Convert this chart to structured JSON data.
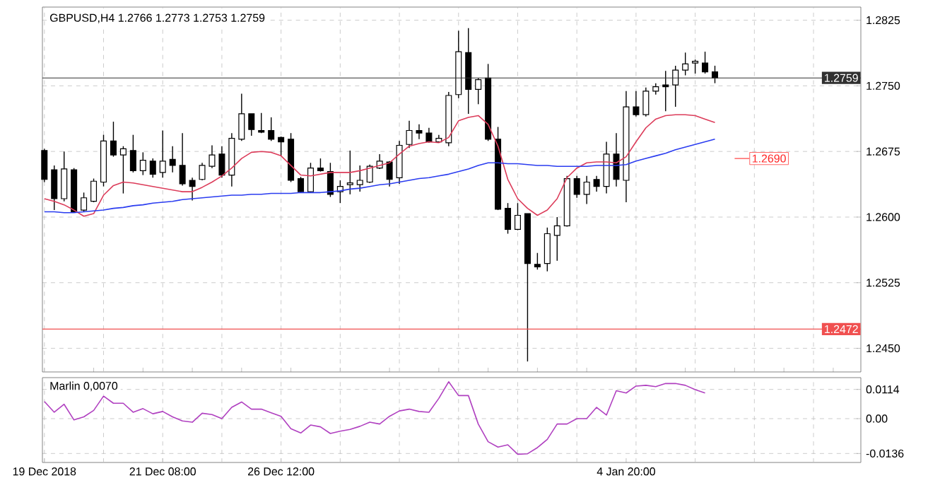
{
  "chart_data": [
    {
      "type": "candlestick",
      "title": "GBPUSD,H4  1.2766 1.2773 1.2753 1.2759",
      "categories": [
        null,
        null,
        null,
        null,
        null,
        null,
        null,
        null,
        null,
        null,
        null,
        null,
        null,
        null,
        null,
        null,
        null,
        null,
        null,
        null,
        null,
        null,
        null,
        null,
        null,
        null,
        null,
        null,
        null,
        null,
        null,
        null,
        null,
        null,
        null,
        null,
        null,
        null,
        null,
        null,
        null,
        null,
        null,
        null,
        null,
        null,
        null,
        null,
        null,
        null,
        null,
        null,
        null,
        null,
        null,
        null,
        null,
        null,
        null,
        null,
        null,
        null,
        null,
        null,
        null,
        null,
        null,
        null,
        null
      ],
      "ohlc": [
        [
          1.2676,
          1.2678,
          1.264,
          1.2643
        ],
        [
          1.2654,
          1.2659,
          1.2608,
          1.2621
        ],
        [
          1.2621,
          1.2675,
          1.2618,
          1.2655
        ],
        [
          1.2654,
          1.2656,
          1.2605,
          1.2606
        ],
        [
          1.2608,
          1.2628,
          1.2606,
          1.2622
        ],
        [
          1.2618,
          1.2644,
          1.2617,
          1.2641
        ],
        [
          1.264,
          1.2694,
          1.2635,
          1.2687
        ],
        [
          1.2687,
          1.2709,
          1.2669,
          1.2671
        ],
        [
          1.2671,
          1.2681,
          1.2627,
          1.2678
        ],
        [
          1.2676,
          1.2694,
          1.2651,
          1.2653
        ],
        [
          1.2653,
          1.2674,
          1.2648,
          1.2665
        ],
        [
          1.2664,
          1.2667,
          1.2645,
          1.2649
        ],
        [
          1.2651,
          1.2699,
          1.2645,
          1.2664
        ],
        [
          1.2666,
          1.2681,
          1.2651,
          1.2659
        ],
        [
          1.2659,
          1.2696,
          1.2636,
          1.2638
        ],
        [
          1.2642,
          1.2645,
          1.2619,
          1.2635
        ],
        [
          1.2643,
          1.2662,
          1.2642,
          1.2659
        ],
        [
          1.2658,
          1.2682,
          1.2656,
          1.2671
        ],
        [
          1.2672,
          1.2681,
          1.2645,
          1.2648
        ],
        [
          1.2648,
          1.2696,
          1.2635,
          1.269
        ],
        [
          1.2689,
          1.2741,
          1.2687,
          1.2718
        ],
        [
          1.2718,
          1.2718,
          1.2693,
          1.27
        ],
        [
          1.2699,
          1.2719,
          1.2696,
          1.2697
        ],
        [
          1.2699,
          1.2714,
          1.2687,
          1.2689
        ],
        [
          1.2691,
          1.2692,
          1.267,
          1.2686
        ],
        [
          1.2689,
          1.2696,
          1.264,
          1.2642
        ],
        [
          1.2644,
          1.2646,
          1.2628,
          1.2629
        ],
        [
          1.2629,
          1.2662,
          1.2628,
          1.2656
        ],
        [
          1.2656,
          1.2667,
          1.2652,
          1.2653
        ],
        [
          1.2652,
          1.2662,
          1.2623,
          1.2626
        ],
        [
          1.2629,
          1.2642,
          1.2616,
          1.2635
        ],
        [
          1.2637,
          1.2676,
          1.2626,
          1.2639
        ],
        [
          1.2637,
          1.2659,
          1.2629,
          1.2642
        ],
        [
          1.264,
          1.266,
          1.2639,
          1.2658
        ],
        [
          1.2656,
          1.2672,
          1.2655,
          1.2664
        ],
        [
          1.2663,
          1.2664,
          1.2635,
          1.2643
        ],
        [
          1.2645,
          1.2687,
          1.2638,
          1.2682
        ],
        [
          1.2683,
          1.271,
          1.2679,
          1.2699
        ],
        [
          1.2699,
          1.2706,
          1.2689,
          1.2696
        ],
        [
          1.2696,
          1.2702,
          1.2685,
          1.2686
        ],
        [
          1.2686,
          1.2694,
          1.2685,
          1.269
        ],
        [
          1.2685,
          1.2743,
          1.2681,
          1.2739
        ],
        [
          1.274,
          1.2813,
          1.2736,
          1.2789
        ],
        [
          1.2788,
          1.2816,
          1.2718,
          1.2746
        ],
        [
          1.2746,
          1.2759,
          1.2729,
          1.2757
        ],
        [
          1.2759,
          1.2775,
          1.2687,
          1.2689
        ],
        [
          1.2689,
          1.2703,
          1.2608,
          1.2609
        ],
        [
          1.261,
          1.2616,
          1.2581,
          1.2586
        ],
        [
          1.2586,
          1.2616,
          1.2585,
          1.2602
        ],
        [
          1.2604,
          1.2604,
          1.2435,
          1.2547
        ],
        [
          1.2546,
          1.2559,
          1.254,
          1.2543
        ],
        [
          1.2547,
          1.2588,
          1.2538,
          1.2581
        ],
        [
          1.2579,
          1.26,
          1.255,
          1.259
        ],
        [
          1.259,
          1.2647,
          1.2589,
          1.2644
        ],
        [
          1.2644,
          1.2647,
          1.2622,
          1.2626
        ],
        [
          1.2626,
          1.2647,
          1.2615,
          1.264
        ],
        [
          1.2643,
          1.2647,
          1.2629,
          1.2635
        ],
        [
          1.2635,
          1.2686,
          1.2627,
          1.2672
        ],
        [
          1.2672,
          1.2696,
          1.2635,
          1.2643
        ],
        [
          1.2642,
          1.2744,
          1.2617,
          1.2726
        ],
        [
          1.2726,
          1.2744,
          1.2715,
          1.2717
        ],
        [
          1.2717,
          1.2748,
          1.2715,
          1.2744
        ],
        [
          1.2744,
          1.2753,
          1.274,
          1.2749
        ],
        [
          1.2751,
          1.2767,
          1.2721,
          1.2749
        ],
        [
          1.2751,
          1.2773,
          1.2726,
          1.2768
        ],
        [
          1.2768,
          1.2788,
          1.2762,
          1.2775
        ],
        [
          1.2776,
          1.278,
          1.2764,
          1.2778
        ],
        [
          1.2776,
          1.2789,
          1.2764,
          1.2766
        ],
        [
          1.2766,
          1.2773,
          1.2753,
          1.2759
        ]
      ],
      "series": [
        {
          "type": "line",
          "color": "#dc3c5a",
          "values": [
            1.2621,
            1.2618,
            1.2614,
            1.2608,
            1.2601,
            1.2604,
            1.2625,
            1.2636,
            1.264,
            1.2639,
            1.2637,
            1.2635,
            1.2633,
            1.2631,
            1.2629,
            1.2629,
            1.2634,
            1.264,
            1.2647,
            1.2656,
            1.2667,
            1.2674,
            1.2675,
            1.2674,
            1.267,
            1.2659,
            1.2648,
            1.2647,
            1.2649,
            1.2651,
            1.2651,
            1.2651,
            1.2653,
            1.2656,
            1.2659,
            1.2662,
            1.2672,
            1.2681,
            1.2684,
            1.2686,
            1.2685,
            1.2691,
            1.271,
            1.2714,
            1.2716,
            1.2706,
            1.2681,
            1.2643,
            1.2621,
            1.261,
            1.2602,
            1.2608,
            1.2621,
            1.2645,
            1.2656,
            1.2662,
            1.2663,
            1.2663,
            1.2662,
            1.2669,
            1.2686,
            1.2702,
            1.2712,
            1.2716,
            1.2717,
            1.2717,
            1.2716,
            1.2712,
            1.2708
          ]
        },
        {
          "type": "line",
          "color": "#2a3cf0",
          "values": [
            1.2606,
            1.2606,
            1.2605,
            1.2605,
            1.2606,
            1.2607,
            1.2608,
            1.261,
            1.2611,
            1.2613,
            1.2614,
            1.2616,
            1.2617,
            1.2618,
            1.262,
            1.2621,
            1.2622,
            1.2623,
            1.2624,
            1.2625,
            1.2625,
            1.2626,
            1.2626,
            1.2627,
            1.2627,
            1.2627,
            1.2628,
            1.2628,
            1.2628,
            1.2629,
            1.263,
            1.2632,
            1.2633,
            1.2635,
            1.2637,
            1.2638,
            1.264,
            1.2642,
            1.2644,
            1.2645,
            1.2647,
            1.2649,
            1.2652,
            1.2655,
            1.2659,
            1.2662,
            1.2662,
            1.2661,
            1.2661,
            1.266,
            1.2659,
            1.2659,
            1.2658,
            1.2658,
            1.2658,
            1.2658,
            1.2659,
            1.2659,
            1.2659,
            1.266,
            1.2664,
            1.2667,
            1.267,
            1.2673,
            1.2677,
            1.268,
            1.2683,
            1.2686,
            1.2689
          ]
        }
      ],
      "ylim": [
        1.2423,
        1.284
      ],
      "yticks": [
        1.2825,
        {
          "value": 1.275,
          "label": "1.2750"
        },
        1.2675,
        {
          "value": 1.26,
          "label": "1.2600"
        },
        1.2525,
        {
          "value": 1.245,
          "label": "1.2450"
        }
      ],
      "ref_lines": [
        {
          "axis": "y",
          "value": 1.2759,
          "label": "1.2759",
          "color": "#303030"
        },
        {
          "axis": "y",
          "value": 1.2472,
          "label": "1.2472",
          "color": "#f05050"
        }
      ],
      "annotations": [
        "1.2690"
      ],
      "grid": true,
      "tick_labels": "y"
    },
    {
      "type": "line",
      "title": "Marlin 0,0070",
      "categories": [
        "19 Dec 2018",
        null,
        null,
        null,
        null,
        null,
        null,
        null,
        null,
        null,
        null,
        null,
        "21 Dec 08:00",
        null,
        null,
        null,
        null,
        null,
        null,
        null,
        null,
        null,
        null,
        null,
        "26 Dec 12:00",
        null,
        null,
        null,
        null,
        null,
        null,
        null,
        null,
        null,
        null,
        null,
        null,
        null,
        null,
        null,
        null,
        null,
        null,
        null,
        null,
        null,
        null,
        null,
        null,
        null,
        null,
        null,
        null,
        null,
        null,
        null,
        null,
        null,
        null,
        "4 Jan 20:00",
        null,
        null,
        null,
        null,
        null,
        null,
        null,
        null,
        null
      ],
      "values": [
        0.0067,
        0.0025,
        0.0056,
        -0.0005,
        0.0007,
        0.0032,
        0.0088,
        0.006,
        0.006,
        0.0025,
        0.0039,
        0.0019,
        0.0028,
        0.0007,
        -0.0009,
        -0.0014,
        0.0021,
        0.0016,
        0.0,
        0.0044,
        0.0065,
        0.0037,
        0.0037,
        0.0023,
        0.0009,
        -0.0039,
        -0.0056,
        -0.0025,
        -0.0032,
        -0.0058,
        -0.0049,
        -0.0042,
        -0.003,
        -0.0014,
        -0.0021,
        0.0009,
        0.003,
        0.0037,
        0.0028,
        0.0025,
        0.0079,
        0.0144,
        0.009,
        0.009,
        -0.0021,
        -0.009,
        -0.0111,
        -0.0102,
        -0.0139,
        -0.0137,
        -0.0113,
        -0.0081,
        -0.0021,
        -0.0021,
        0.0,
        0.0,
        0.0044,
        0.0014,
        0.0109,
        0.01,
        0.0127,
        0.013,
        0.0125,
        0.0137,
        0.0137,
        0.013,
        0.0113,
        0.01,
        null
      ],
      "color": "#b040c0",
      "ylim": [
        -0.0171,
        0.016
      ],
      "yticks": [
        0.0114,
        {
          "value": 0,
          "label": "0.00"
        },
        -0.0136
      ],
      "grid": true
    }
  ]
}
